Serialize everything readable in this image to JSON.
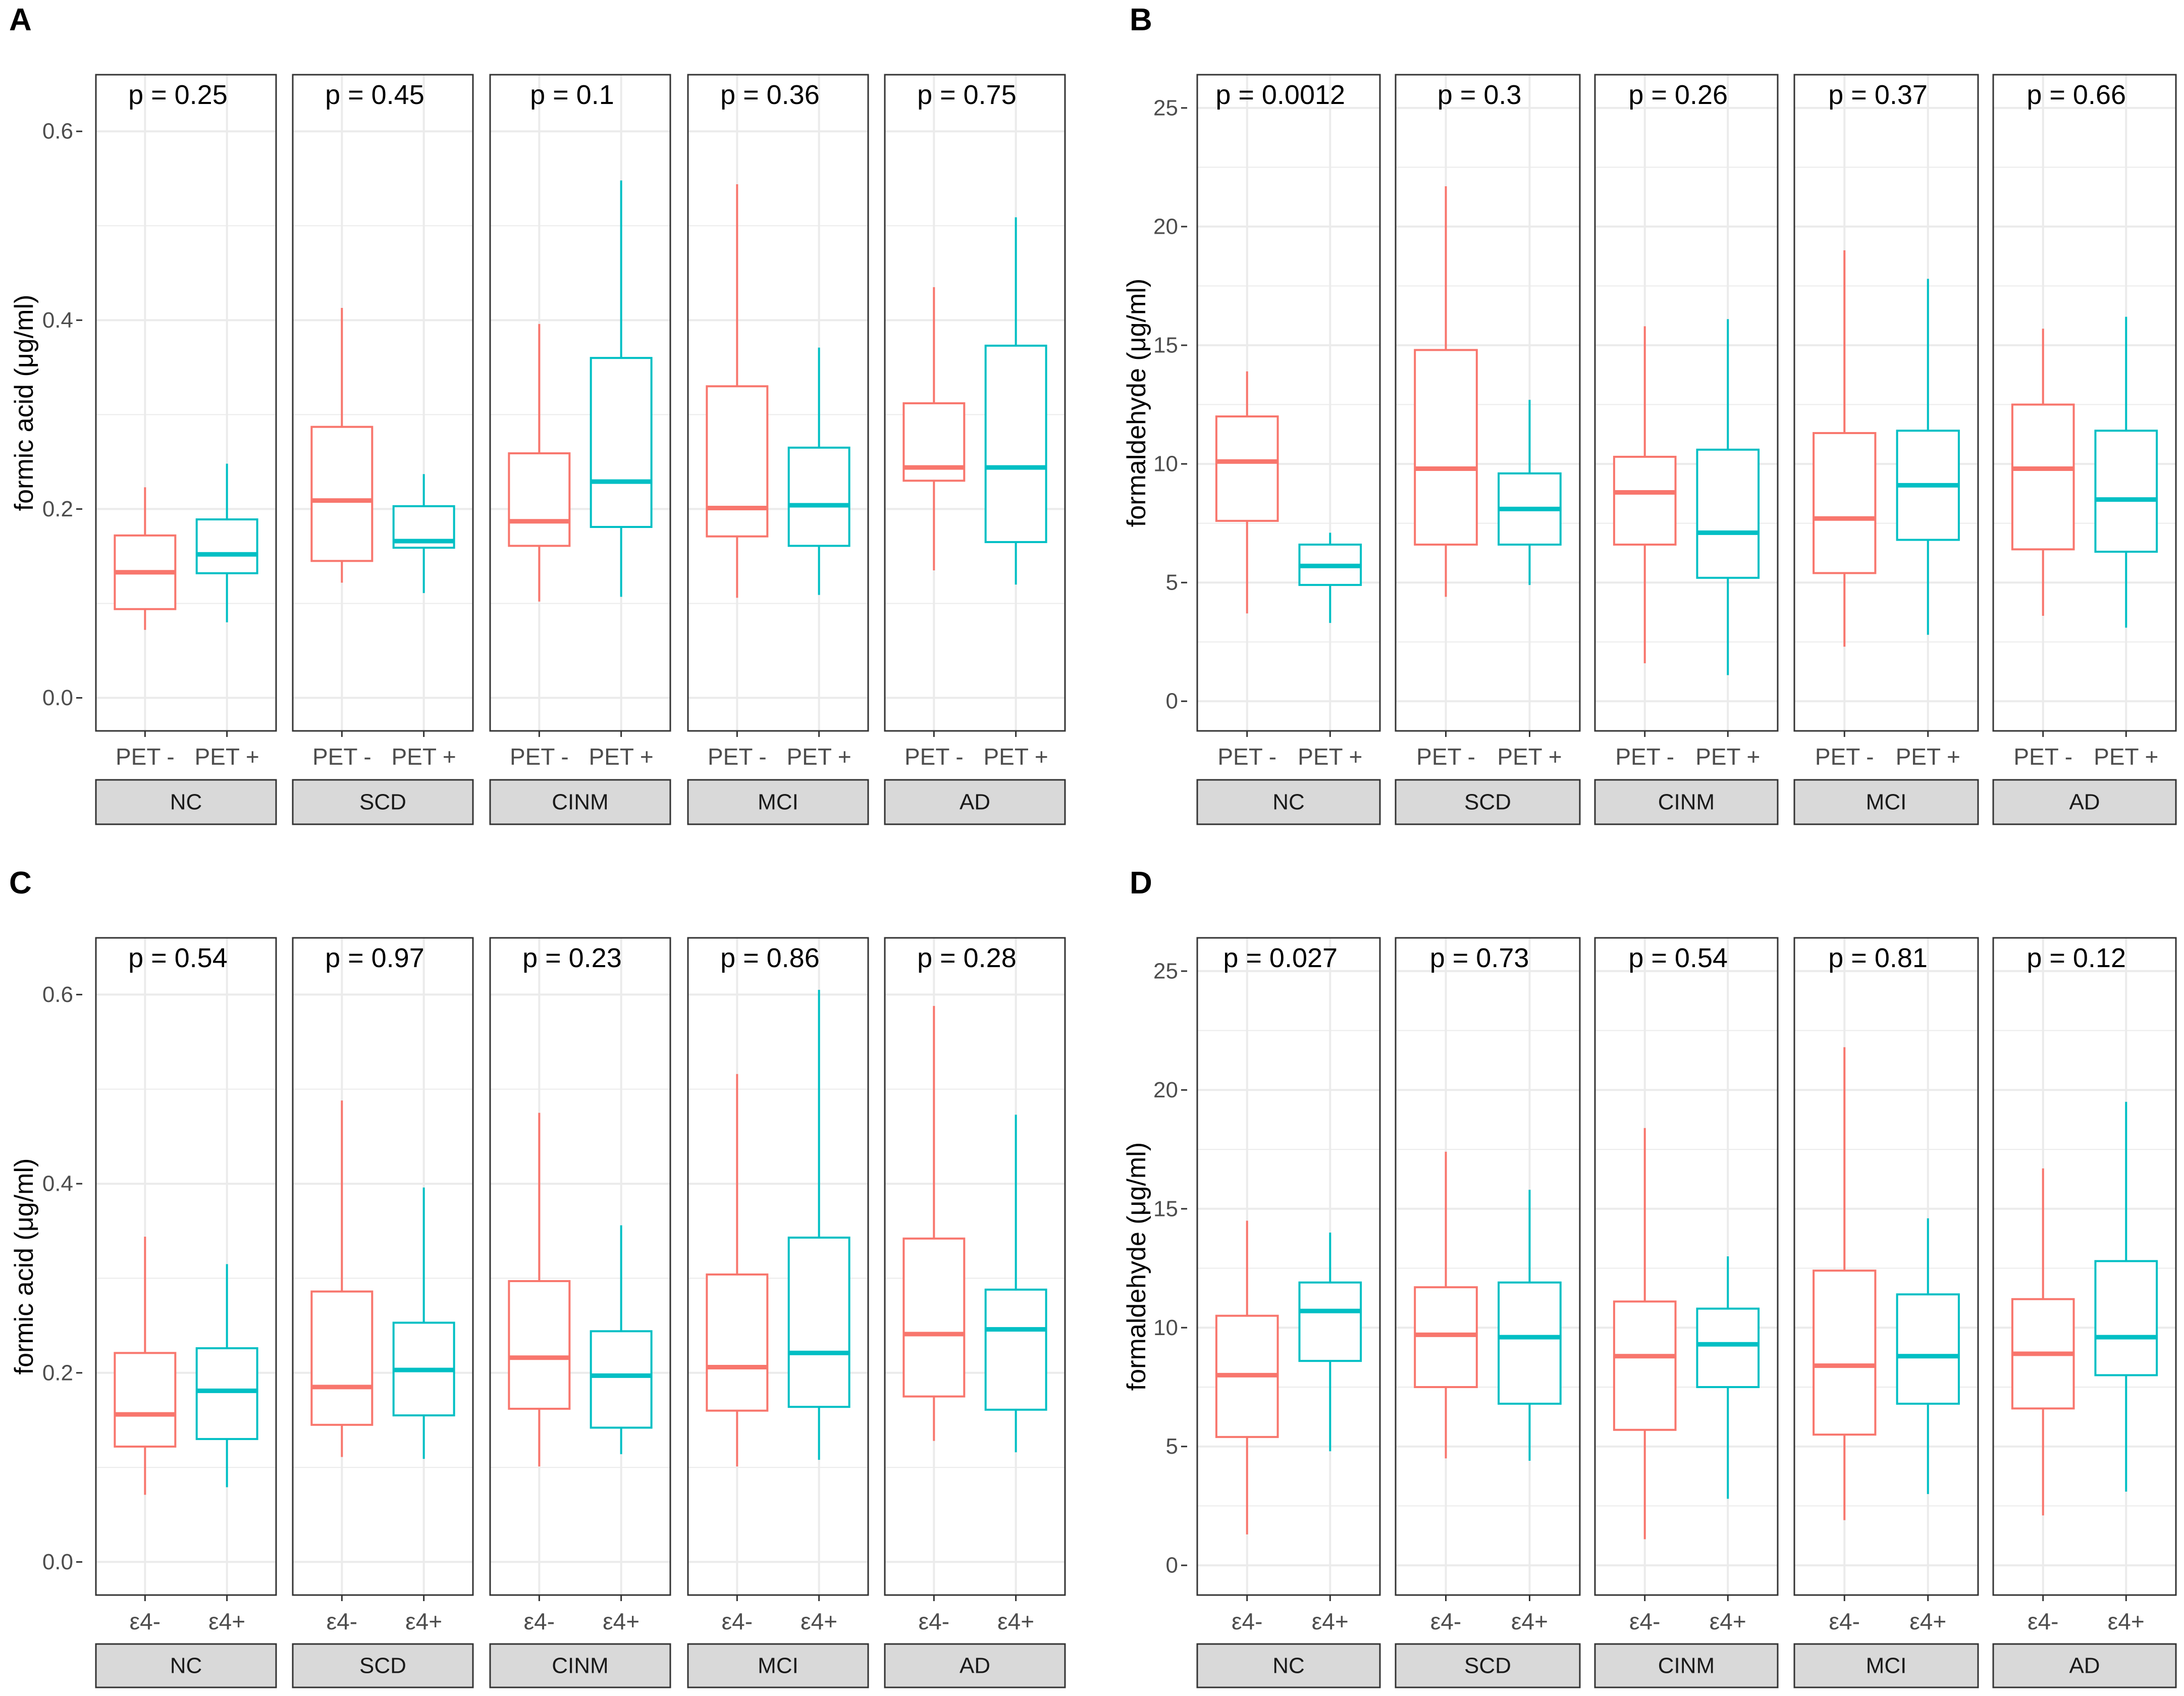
{
  "colors": {
    "group1": "#F8766D",
    "group2": "#00BFC4",
    "grid": "#EBEBEB",
    "frame": "#333333",
    "strip_fill": "#D9D9D9",
    "text": "#000000",
    "tick_text": "#4D4D4D"
  },
  "chart_data": [
    {
      "panel_label": "A",
      "type": "boxplot",
      "ylabel": "formic acid (μg/ml)",
      "ylim": [
        -0.035,
        0.66
      ],
      "yticks": [
        0.0,
        0.2,
        0.4,
        0.6
      ],
      "ytick_labels": [
        "0.0",
        "0.2",
        "0.4",
        "0.6"
      ],
      "group_labels": [
        "PET -",
        "PET +"
      ],
      "facets": [
        {
          "name": "NC",
          "p_label": "p = 0.25",
          "boxes": [
            {
              "min": 0.072,
              "q1": 0.094,
              "median": 0.133,
              "q3": 0.172,
              "max": 0.223
            },
            {
              "min": 0.08,
              "q1": 0.132,
              "median": 0.152,
              "q3": 0.189,
              "max": 0.248
            }
          ]
        },
        {
          "name": "SCD",
          "p_label": "p = 0.45",
          "boxes": [
            {
              "min": 0.122,
              "q1": 0.145,
              "median": 0.209,
              "q3": 0.287,
              "max": 0.413
            },
            {
              "min": 0.111,
              "q1": 0.159,
              "median": 0.166,
              "q3": 0.203,
              "max": 0.237
            }
          ]
        },
        {
          "name": "CINM",
          "p_label": "p = 0.1",
          "boxes": [
            {
              "min": 0.102,
              "q1": 0.161,
              "median": 0.187,
              "q3": 0.259,
              "max": 0.396
            },
            {
              "min": 0.107,
              "q1": 0.181,
              "median": 0.229,
              "q3": 0.36,
              "max": 0.548
            }
          ]
        },
        {
          "name": "MCI",
          "p_label": "p = 0.36",
          "boxes": [
            {
              "min": 0.106,
              "q1": 0.171,
              "median": 0.201,
              "q3": 0.33,
              "max": 0.544
            },
            {
              "min": 0.109,
              "q1": 0.161,
              "median": 0.204,
              "q3": 0.265,
              "max": 0.371
            }
          ]
        },
        {
          "name": "AD",
          "p_label": "p = 0.75",
          "boxes": [
            {
              "min": 0.135,
              "q1": 0.23,
              "median": 0.244,
              "q3": 0.312,
              "max": 0.435
            },
            {
              "min": 0.12,
              "q1": 0.165,
              "median": 0.244,
              "q3": 0.373,
              "max": 0.509
            }
          ]
        }
      ]
    },
    {
      "panel_label": "B",
      "type": "boxplot",
      "ylabel": "formaldehyde (μg/ml)",
      "ylim": [
        -1.25,
        26.4
      ],
      "yticks": [
        0,
        5,
        10,
        15,
        20,
        25
      ],
      "ytick_labels": [
        "0",
        "5",
        "10",
        "15",
        "20",
        "25"
      ],
      "group_labels": [
        "PET -",
        "PET +"
      ],
      "facets": [
        {
          "name": "NC",
          "p_label": "p = 0.0012",
          "boxes": [
            {
              "min": 3.7,
              "q1": 7.6,
              "median": 10.1,
              "q3": 12.0,
              "max": 13.9
            },
            {
              "min": 3.3,
              "q1": 4.9,
              "median": 5.7,
              "q3": 6.6,
              "max": 7.1
            }
          ]
        },
        {
          "name": "SCD",
          "p_label": "p = 0.3",
          "boxes": [
            {
              "min": 4.4,
              "q1": 6.6,
              "median": 9.8,
              "q3": 14.8,
              "max": 21.7
            },
            {
              "min": 4.9,
              "q1": 6.6,
              "median": 8.1,
              "q3": 9.6,
              "max": 12.7
            }
          ]
        },
        {
          "name": "CINM",
          "p_label": "p = 0.26",
          "boxes": [
            {
              "min": 1.6,
              "q1": 6.6,
              "median": 8.8,
              "q3": 10.3,
              "max": 15.8
            },
            {
              "min": 1.1,
              "q1": 5.2,
              "median": 7.1,
              "q3": 10.6,
              "max": 16.1
            }
          ]
        },
        {
          "name": "MCI",
          "p_label": "p = 0.37",
          "boxes": [
            {
              "min": 2.3,
              "q1": 5.4,
              "median": 7.7,
              "q3": 11.3,
              "max": 19.0
            },
            {
              "min": 2.8,
              "q1": 6.8,
              "median": 9.1,
              "q3": 11.4,
              "max": 17.8
            }
          ]
        },
        {
          "name": "AD",
          "p_label": "p = 0.66",
          "boxes": [
            {
              "min": 3.6,
              "q1": 6.4,
              "median": 9.8,
              "q3": 12.5,
              "max": 15.7
            },
            {
              "min": 3.1,
              "q1": 6.3,
              "median": 8.5,
              "q3": 11.4,
              "max": 16.2
            }
          ]
        }
      ]
    },
    {
      "panel_label": "C",
      "type": "boxplot",
      "ylabel": "formic acid (μg/ml)",
      "ylim": [
        -0.035,
        0.66
      ],
      "yticks": [
        0.0,
        0.2,
        0.4,
        0.6
      ],
      "ytick_labels": [
        "0.0",
        "0.2",
        "0.4",
        "0.6"
      ],
      "group_labels": [
        "ε4-",
        "ε4+"
      ],
      "facets": [
        {
          "name": "NC",
          "p_label": "p = 0.54",
          "boxes": [
            {
              "min": 0.071,
              "q1": 0.122,
              "median": 0.156,
              "q3": 0.221,
              "max": 0.344
            },
            {
              "min": 0.079,
              "q1": 0.13,
              "median": 0.181,
              "q3": 0.226,
              "max": 0.315
            }
          ]
        },
        {
          "name": "SCD",
          "p_label": "p = 0.97",
          "boxes": [
            {
              "min": 0.111,
              "q1": 0.145,
              "median": 0.185,
              "q3": 0.286,
              "max": 0.488
            },
            {
              "min": 0.109,
              "q1": 0.155,
              "median": 0.203,
              "q3": 0.253,
              "max": 0.396
            }
          ]
        },
        {
          "name": "CINM",
          "p_label": "p = 0.23",
          "boxes": [
            {
              "min": 0.101,
              "q1": 0.162,
              "median": 0.216,
              "q3": 0.297,
              "max": 0.475
            },
            {
              "min": 0.114,
              "q1": 0.142,
              "median": 0.197,
              "q3": 0.244,
              "max": 0.356
            }
          ]
        },
        {
          "name": "MCI",
          "p_label": "p = 0.86",
          "boxes": [
            {
              "min": 0.101,
              "q1": 0.16,
              "median": 0.206,
              "q3": 0.304,
              "max": 0.516
            },
            {
              "min": 0.108,
              "q1": 0.164,
              "median": 0.221,
              "q3": 0.343,
              "max": 0.605
            }
          ]
        },
        {
          "name": "AD",
          "p_label": "p = 0.28",
          "boxes": [
            {
              "min": 0.128,
              "q1": 0.175,
              "median": 0.241,
              "q3": 0.342,
              "max": 0.588
            },
            {
              "min": 0.116,
              "q1": 0.161,
              "median": 0.246,
              "q3": 0.288,
              "max": 0.473
            }
          ]
        }
      ]
    },
    {
      "panel_label": "D",
      "type": "boxplot",
      "ylabel": "formaldehyde (μg/ml)",
      "ylim": [
        -1.25,
        26.4
      ],
      "yticks": [
        0,
        5,
        10,
        15,
        20,
        25
      ],
      "ytick_labels": [
        "0",
        "5",
        "10",
        "15",
        "20",
        "25"
      ],
      "group_labels": [
        "ε4-",
        "ε4+"
      ],
      "facets": [
        {
          "name": "NC",
          "p_label": "p = 0.027",
          "boxes": [
            {
              "min": 1.3,
              "q1": 5.4,
              "median": 8.0,
              "q3": 10.5,
              "max": 14.5
            },
            {
              "min": 4.8,
              "q1": 8.6,
              "median": 10.7,
              "q3": 11.9,
              "max": 14.0
            }
          ]
        },
        {
          "name": "SCD",
          "p_label": "p = 0.73",
          "boxes": [
            {
              "min": 4.5,
              "q1": 7.5,
              "median": 9.7,
              "q3": 11.7,
              "max": 17.4
            },
            {
              "min": 4.4,
              "q1": 6.8,
              "median": 9.6,
              "q3": 11.9,
              "max": 15.8
            }
          ]
        },
        {
          "name": "CINM",
          "p_label": "p = 0.54",
          "boxes": [
            {
              "min": 1.1,
              "q1": 5.7,
              "median": 8.8,
              "q3": 11.1,
              "max": 18.4
            },
            {
              "min": 2.8,
              "q1": 7.5,
              "median": 9.3,
              "q3": 10.8,
              "max": 13.0
            }
          ]
        },
        {
          "name": "MCI",
          "p_label": "p = 0.81",
          "boxes": [
            {
              "min": 1.9,
              "q1": 5.5,
              "median": 8.4,
              "q3": 12.4,
              "max": 21.8
            },
            {
              "min": 3.0,
              "q1": 6.8,
              "median": 8.8,
              "q3": 11.4,
              "max": 14.6
            }
          ]
        },
        {
          "name": "AD",
          "p_label": "p = 0.12",
          "boxes": [
            {
              "min": 2.1,
              "q1": 6.6,
              "median": 8.9,
              "q3": 11.2,
              "max": 16.7
            },
            {
              "min": 3.1,
              "q1": 8.0,
              "median": 9.6,
              "q3": 12.8,
              "max": 19.5
            }
          ]
        }
      ]
    }
  ]
}
